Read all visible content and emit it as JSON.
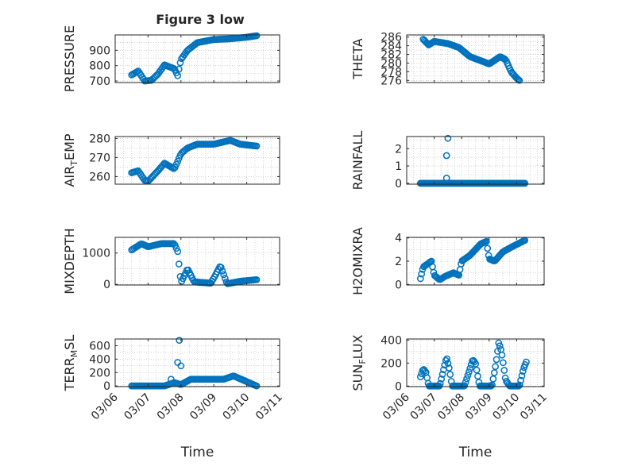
{
  "title": "Figure 3 low",
  "chart_data": [
    {
      "type": "scatter",
      "title": "Figure 3 low",
      "ylabel": "PRESSURE",
      "ylim": [
        690,
        1000
      ],
      "yticks": [
        700,
        800,
        900
      ],
      "ytick_labels": [
        "700",
        "800",
        "900"
      ],
      "grid": true,
      "anchors": [
        [
          6.5,
          740
        ],
        [
          6.7,
          765
        ],
        [
          6.9,
          700
        ],
        [
          7.1,
          705
        ],
        [
          7.3,
          745
        ],
        [
          7.5,
          805
        ],
        [
          7.8,
          780
        ],
        [
          7.9,
          735
        ],
        [
          8.0,
          840
        ],
        [
          8.2,
          900
        ],
        [
          8.5,
          950
        ],
        [
          9.0,
          970
        ],
        [
          9.5,
          975
        ],
        [
          10.0,
          985
        ],
        [
          10.3,
          995
        ]
      ]
    },
    {
      "type": "scatter",
      "ylabel": "THETA",
      "ylim": [
        275.5,
        286.5
      ],
      "yticks": [
        276,
        278,
        280,
        282,
        284,
        286
      ],
      "ytick_labels": [
        "276",
        "278",
        "280",
        "282",
        "284",
        "286"
      ],
      "grid": true,
      "anchors": [
        [
          6.6,
          285.5
        ],
        [
          6.8,
          284.2
        ],
        [
          7.0,
          285.0
        ],
        [
          7.5,
          284.5
        ],
        [
          7.9,
          283.6
        ],
        [
          8.3,
          281.5
        ],
        [
          8.8,
          280.3
        ],
        [
          9.0,
          279.8
        ],
        [
          9.4,
          281.5
        ],
        [
          9.6,
          280.8
        ],
        [
          9.8,
          278.0
        ],
        [
          10.0,
          276.5
        ],
        [
          10.1,
          276.0
        ]
      ]
    },
    {
      "type": "scatter",
      "ylabel": "AIR_TEMP",
      "ylim": [
        256,
        281
      ],
      "yticks": [
        260,
        270,
        280
      ],
      "ytick_labels": [
        "260",
        "270",
        "280"
      ],
      "grid": true,
      "anchors": [
        [
          6.5,
          262
        ],
        [
          6.7,
          263
        ],
        [
          6.9,
          258
        ],
        [
          7.0,
          257.5
        ],
        [
          7.3,
          263
        ],
        [
          7.5,
          267
        ],
        [
          7.8,
          264
        ],
        [
          8.0,
          272
        ],
        [
          8.2,
          275
        ],
        [
          8.5,
          277
        ],
        [
          9.0,
          277
        ],
        [
          9.5,
          279
        ],
        [
          9.8,
          277
        ],
        [
          10.3,
          276
        ]
      ]
    },
    {
      "type": "scatter",
      "ylabel": "RAINFALL",
      "ylim": [
        -0.05,
        2.7
      ],
      "yticks": [
        0,
        1,
        2
      ],
      "ytick_labels": [
        "0",
        "1",
        "2"
      ],
      "grid": true,
      "anchors": [
        [
          6.5,
          0
        ],
        [
          10.3,
          0
        ]
      ],
      "extra_points": [
        [
          7.45,
          0.3
        ],
        [
          7.45,
          1.6
        ],
        [
          7.5,
          2.6
        ]
      ]
    },
    {
      "type": "scatter",
      "ylabel": "MIXDEPTH",
      "ylim": [
        -20,
        1500
      ],
      "yticks": [
        0,
        1000
      ],
      "ytick_labels": [
        "0",
        "1000"
      ],
      "grid": true,
      "anchors": [
        [
          6.5,
          1100
        ],
        [
          6.8,
          1300
        ],
        [
          7.0,
          1200
        ],
        [
          7.4,
          1300
        ],
        [
          7.8,
          1300
        ],
        [
          7.9,
          1050
        ],
        [
          8.0,
          50
        ],
        [
          8.2,
          500
        ],
        [
          8.4,
          80
        ],
        [
          8.9,
          40
        ],
        [
          9.0,
          200
        ],
        [
          9.2,
          600
        ],
        [
          9.4,
          20
        ],
        [
          9.8,
          100
        ],
        [
          10.3,
          150
        ]
      ]
    },
    {
      "type": "scatter",
      "ylabel": "H2OMIXRA",
      "ylim": [
        -0.05,
        4.05
      ],
      "yticks": [
        0,
        2,
        4
      ],
      "ytick_labels": [
        "0",
        "2",
        "4"
      ],
      "grid": true,
      "anchors": [
        [
          6.5,
          0.5
        ],
        [
          6.6,
          1.5
        ],
        [
          6.9,
          2.0
        ],
        [
          7.0,
          0.8
        ],
        [
          7.2,
          0.4
        ],
        [
          7.4,
          0.7
        ],
        [
          7.7,
          1.0
        ],
        [
          7.9,
          0.8
        ],
        [
          8.0,
          2.0
        ],
        [
          8.3,
          2.5
        ],
        [
          8.7,
          3.5
        ],
        [
          8.9,
          3.7
        ],
        [
          9.0,
          2.2
        ],
        [
          9.2,
          2.0
        ],
        [
          9.5,
          2.8
        ],
        [
          9.8,
          3.2
        ],
        [
          10.3,
          3.8
        ]
      ]
    },
    {
      "type": "scatter",
      "ylabel": "TERR_MSL",
      "ylim": [
        -10,
        700
      ],
      "yticks": [
        0,
        200,
        400,
        600
      ],
      "ytick_labels": [
        "0",
        "200",
        "400",
        "600"
      ],
      "grid": true,
      "xticks": [
        "03/06",
        "03/07",
        "03/08",
        "03/09",
        "03/10",
        "03/11"
      ],
      "xlabel": "Time",
      "anchors": [
        [
          6.5,
          0
        ],
        [
          7.5,
          0
        ],
        [
          7.8,
          50
        ],
        [
          8.0,
          20
        ],
        [
          8.3,
          100
        ],
        [
          8.9,
          100
        ],
        [
          9.3,
          100
        ],
        [
          9.6,
          150
        ],
        [
          10.3,
          0
        ]
      ],
      "extra_points": [
        [
          7.9,
          350
        ],
        [
          7.95,
          680
        ],
        [
          8.0,
          300
        ],
        [
          7.7,
          100
        ]
      ]
    },
    {
      "type": "scatter",
      "ylabel": "SUN_FLUX",
      "ylim": [
        -5,
        410
      ],
      "yticks": [
        0,
        200,
        400
      ],
      "ytick_labels": [
        "0",
        "200",
        "400"
      ],
      "grid": true,
      "xticks": [
        "03/06",
        "03/07",
        "03/08",
        "03/09",
        "03/10",
        "03/11"
      ],
      "xlabel": "Time",
      "anchors": [
        [
          6.5,
          80
        ],
        [
          6.6,
          150
        ],
        [
          6.7,
          120
        ],
        [
          6.8,
          0
        ],
        [
          7.2,
          0
        ],
        [
          7.35,
          150
        ],
        [
          7.45,
          250
        ],
        [
          7.55,
          150
        ],
        [
          7.65,
          0
        ],
        [
          8.1,
          0
        ],
        [
          8.3,
          150
        ],
        [
          8.4,
          230
        ],
        [
          8.5,
          200
        ],
        [
          8.65,
          0
        ],
        [
          9.1,
          0
        ],
        [
          9.25,
          200
        ],
        [
          9.35,
          380
        ],
        [
          9.45,
          300
        ],
        [
          9.6,
          50
        ],
        [
          9.75,
          0
        ],
        [
          10.1,
          0
        ],
        [
          10.25,
          150
        ],
        [
          10.35,
          210
        ]
      ]
    }
  ]
}
